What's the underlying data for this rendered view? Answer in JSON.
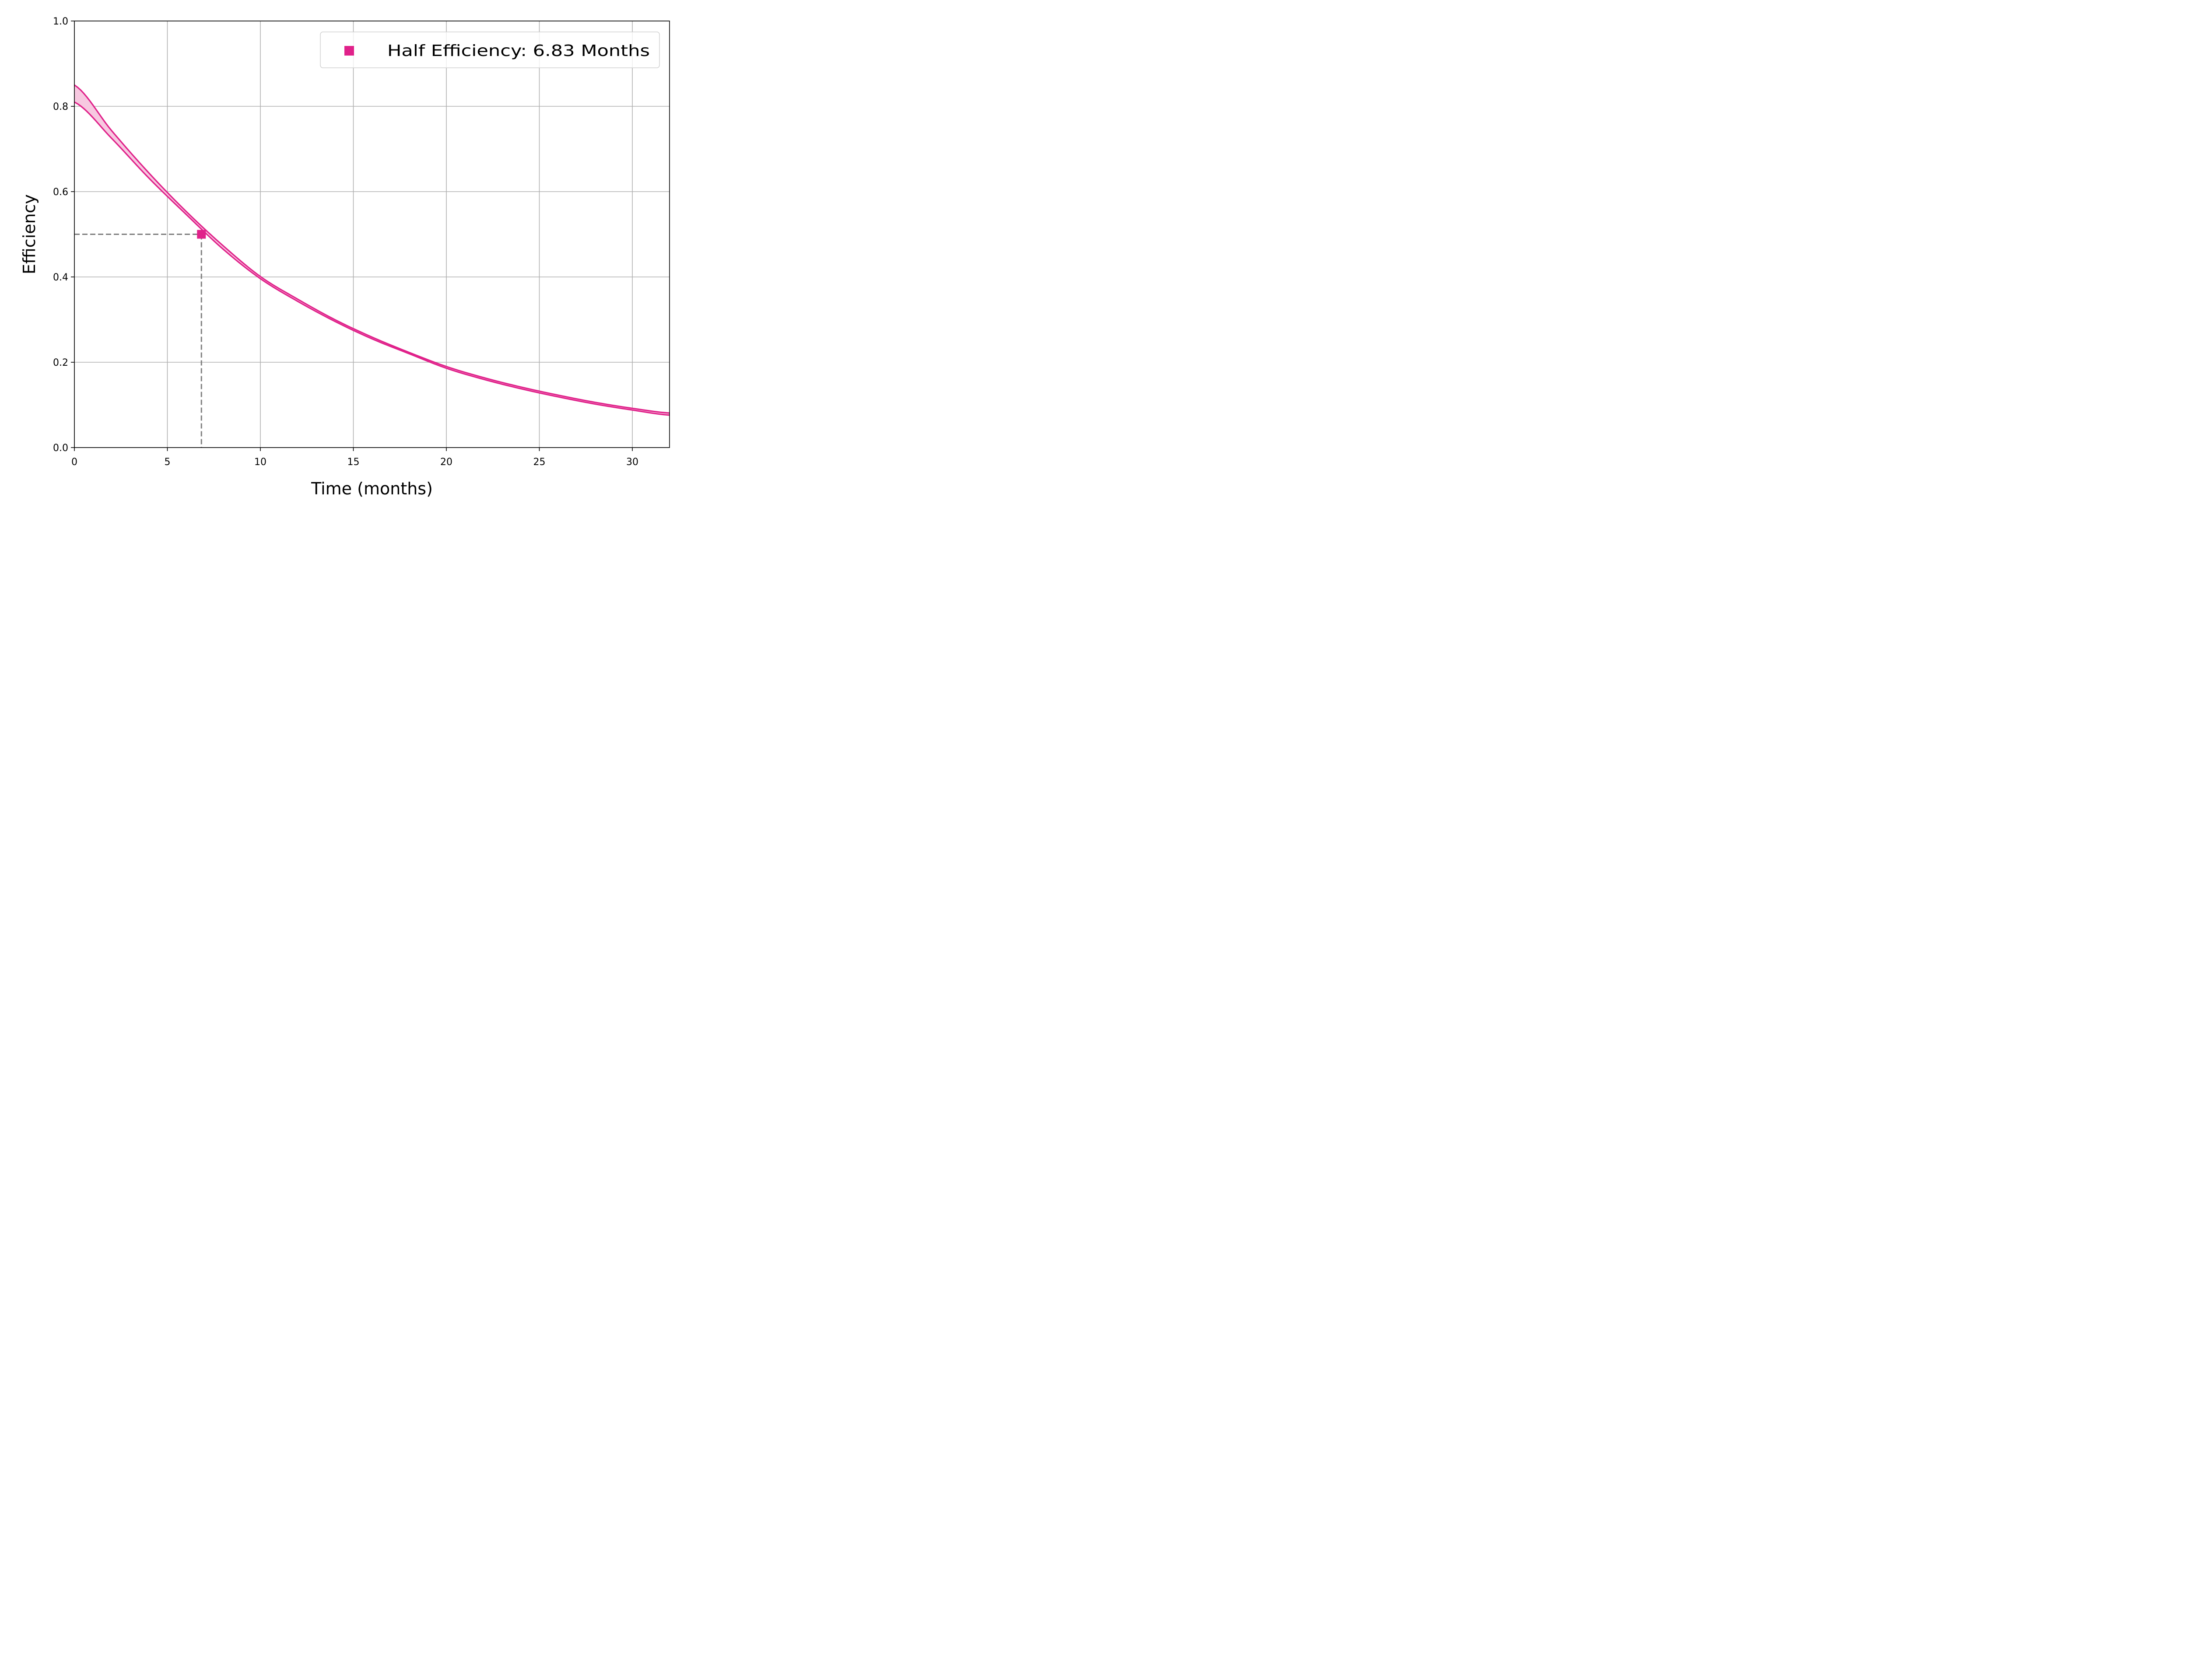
{
  "chart_data": {
    "type": "line",
    "title": "",
    "xlabel": "Time (months)",
    "ylabel": "Efficiency",
    "xlim": [
      0,
      32
    ],
    "ylim": [
      0,
      1.0
    ],
    "x_ticks": [
      0,
      5,
      10,
      15,
      20,
      25,
      30
    ],
    "x_tick_labels": [
      "0",
      "5",
      "10",
      "15",
      "20",
      "25",
      "30"
    ],
    "y_ticks": [
      0.0,
      0.2,
      0.4,
      0.6,
      0.8,
      1.0
    ],
    "y_tick_labels": [
      "0.0",
      "0.2",
      "0.4",
      "0.6",
      "0.8",
      "1.0"
    ],
    "grid": true,
    "legend_position": "top-right",
    "colors": {
      "series": "#e0218a",
      "band": "#f7c8e0",
      "reference": "#808080",
      "grid": "#b0b0b0"
    },
    "series": [
      {
        "x": [
          0,
          2,
          4,
          6,
          8,
          10,
          12,
          14,
          16,
          18,
          20,
          22,
          24,
          26,
          28,
          30,
          32
        ],
        "y": [
          0.85,
          0.743,
          0.644,
          0.554,
          0.473,
          0.401,
          0.348,
          0.3,
          0.259,
          0.223,
          0.19,
          0.164,
          0.142,
          0.123,
          0.106,
          0.092,
          0.081
        ]
      },
      {
        "x": [
          0,
          2,
          4,
          6,
          8,
          10,
          12,
          14,
          16,
          18,
          20,
          22,
          24,
          26,
          28,
          30,
          32
        ],
        "y": [
          0.81,
          0.725,
          0.632,
          0.547,
          0.465,
          0.396,
          0.343,
          0.296,
          0.255,
          0.22,
          0.186,
          0.16,
          0.138,
          0.119,
          0.102,
          0.088,
          0.076
        ]
      }
    ],
    "marker": {
      "x": 6.83,
      "y": 0.5,
      "shape": "square",
      "label": "Half Efficiency: 6.83 Months"
    },
    "reference_lines": {
      "horizontal_y": 0.5,
      "vertical_x": 6.83,
      "style": "dashed"
    }
  }
}
